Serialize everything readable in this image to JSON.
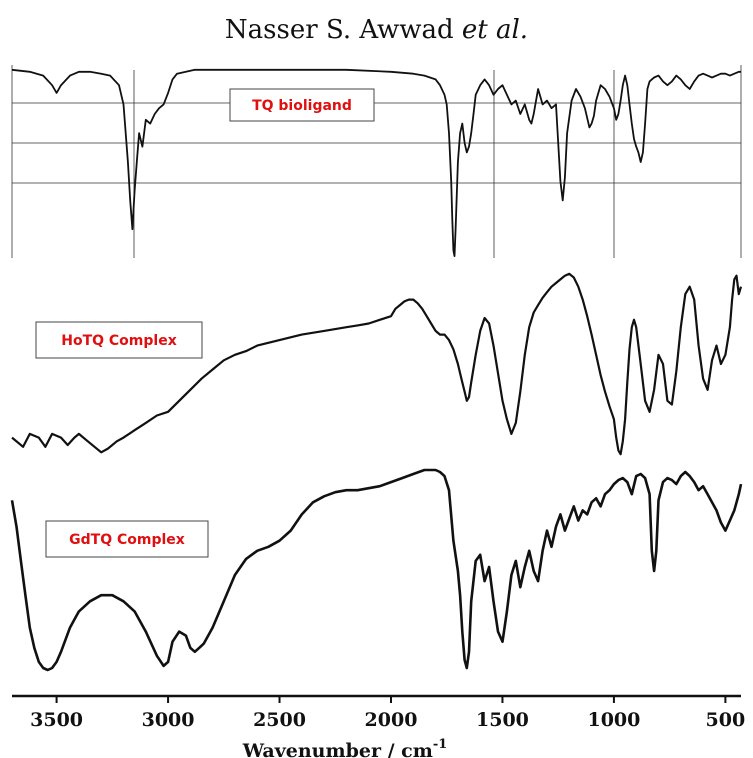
{
  "header": {
    "author": "Nasser S. Awwad",
    "suffix": "et al."
  },
  "chart_data": {
    "type": "line",
    "title": "",
    "xlabel": "Wavenumber / cm",
    "xlabel_superscript": "-1",
    "xlim": [
      3700,
      430
    ],
    "x_reversed": true,
    "x_ticks": [
      3500,
      3000,
      2500,
      2000,
      1500,
      1000,
      500
    ],
    "grid_top_panel": true,
    "series": [
      {
        "name": "TQ bioligand",
        "x": [
          3700,
          3620,
          3560,
          3520,
          3500,
          3480,
          3440,
          3400,
          3350,
          3300,
          3260,
          3220,
          3200,
          3180,
          3170,
          3160,
          3150,
          3140,
          3130,
          3115,
          3100,
          3080,
          3060,
          3040,
          3020,
          3000,
          2980,
          2960,
          2920,
          2880,
          2800,
          2600,
          2400,
          2200,
          2000,
          1900,
          1850,
          1800,
          1780,
          1760,
          1750,
          1740,
          1730,
          1725,
          1720,
          1715,
          1710,
          1700,
          1690,
          1680,
          1670,
          1660,
          1650,
          1640,
          1630,
          1620,
          1600,
          1580,
          1560,
          1540,
          1520,
          1500,
          1480,
          1460,
          1440,
          1420,
          1400,
          1380,
          1370,
          1360,
          1340,
          1320,
          1300,
          1280,
          1260,
          1250,
          1240,
          1230,
          1220,
          1210,
          1190,
          1170,
          1150,
          1130,
          1110,
          1100,
          1090,
          1080,
          1060,
          1040,
          1020,
          1000,
          990,
          980,
          970,
          960,
          950,
          940,
          930,
          920,
          910,
          900,
          890,
          880,
          870,
          860,
          850,
          840,
          830,
          820,
          800,
          780,
          760,
          740,
          720,
          700,
          680,
          660,
          640,
          620,
          600,
          580,
          560,
          540,
          520,
          500,
          480,
          460,
          440,
          430
        ],
        "values": [
          0.98,
          0.97,
          0.95,
          0.9,
          0.86,
          0.9,
          0.95,
          0.97,
          0.97,
          0.96,
          0.95,
          0.9,
          0.8,
          0.5,
          0.3,
          0.15,
          0.35,
          0.5,
          0.65,
          0.58,
          0.72,
          0.7,
          0.75,
          0.78,
          0.8,
          0.86,
          0.93,
          0.96,
          0.97,
          0.98,
          0.98,
          0.98,
          0.98,
          0.98,
          0.97,
          0.96,
          0.95,
          0.93,
          0.9,
          0.85,
          0.8,
          0.65,
          0.4,
          0.2,
          0.04,
          0.01,
          0.15,
          0.5,
          0.65,
          0.7,
          0.6,
          0.55,
          0.58,
          0.65,
          0.75,
          0.85,
          0.9,
          0.93,
          0.9,
          0.85,
          0.88,
          0.9,
          0.85,
          0.8,
          0.82,
          0.75,
          0.8,
          0.72,
          0.7,
          0.75,
          0.88,
          0.8,
          0.82,
          0.78,
          0.8,
          0.6,
          0.4,
          0.3,
          0.42,
          0.65,
          0.82,
          0.88,
          0.84,
          0.78,
          0.68,
          0.7,
          0.74,
          0.82,
          0.9,
          0.88,
          0.84,
          0.78,
          0.72,
          0.75,
          0.82,
          0.9,
          0.95,
          0.9,
          0.8,
          0.7,
          0.62,
          0.58,
          0.55,
          0.5,
          0.55,
          0.7,
          0.88,
          0.92,
          0.93,
          0.94,
          0.95,
          0.92,
          0.9,
          0.92,
          0.95,
          0.93,
          0.9,
          0.88,
          0.92,
          0.95,
          0.96,
          0.95,
          0.94,
          0.95,
          0.96,
          0.96,
          0.95,
          0.96,
          0.97,
          0.97
        ]
      },
      {
        "name": "HoTQ Complex",
        "x": [
          3700,
          3650,
          3620,
          3580,
          3550,
          3520,
          3480,
          3450,
          3420,
          3400,
          3360,
          3330,
          3300,
          3270,
          3230,
          3200,
          3150,
          3100,
          3050,
          3000,
          2950,
          2900,
          2850,
          2800,
          2750,
          2700,
          2650,
          2600,
          2500,
          2400,
          2300,
          2200,
          2150,
          2100,
          2050,
          2000,
          1980,
          1960,
          1940,
          1920,
          1900,
          1880,
          1860,
          1840,
          1820,
          1800,
          1780,
          1760,
          1740,
          1720,
          1700,
          1690,
          1680,
          1670,
          1660,
          1650,
          1640,
          1620,
          1600,
          1580,
          1560,
          1540,
          1520,
          1500,
          1480,
          1460,
          1440,
          1420,
          1400,
          1380,
          1360,
          1340,
          1320,
          1300,
          1280,
          1260,
          1240,
          1220,
          1200,
          1180,
          1160,
          1140,
          1120,
          1100,
          1080,
          1060,
          1040,
          1020,
          1000,
          990,
          980,
          970,
          960,
          950,
          940,
          930,
          920,
          910,
          900,
          880,
          860,
          840,
          820,
          800,
          780,
          760,
          740,
          720,
          700,
          680,
          660,
          640,
          620,
          600,
          580,
          560,
          540,
          520,
          500,
          480,
          470,
          460,
          450,
          440,
          430
        ],
        "values": [
          0.1,
          0.05,
          0.12,
          0.1,
          0.05,
          0.12,
          0.1,
          0.06,
          0.1,
          0.12,
          0.08,
          0.05,
          0.02,
          0.04,
          0.08,
          0.1,
          0.14,
          0.18,
          0.22,
          0.24,
          0.3,
          0.36,
          0.42,
          0.47,
          0.52,
          0.55,
          0.57,
          0.6,
          0.63,
          0.66,
          0.68,
          0.7,
          0.71,
          0.72,
          0.74,
          0.76,
          0.8,
          0.82,
          0.84,
          0.85,
          0.85,
          0.83,
          0.8,
          0.76,
          0.72,
          0.68,
          0.66,
          0.66,
          0.63,
          0.58,
          0.5,
          0.45,
          0.4,
          0.35,
          0.3,
          0.32,
          0.4,
          0.55,
          0.68,
          0.75,
          0.72,
          0.6,
          0.45,
          0.3,
          0.2,
          0.12,
          0.18,
          0.35,
          0.55,
          0.7,
          0.78,
          0.82,
          0.86,
          0.89,
          0.92,
          0.94,
          0.96,
          0.98,
          0.99,
          0.97,
          0.92,
          0.85,
          0.76,
          0.66,
          0.55,
          0.44,
          0.35,
          0.27,
          0.2,
          0.1,
          0.03,
          0.01,
          0.08,
          0.2,
          0.4,
          0.58,
          0.7,
          0.74,
          0.7,
          0.5,
          0.3,
          0.24,
          0.36,
          0.55,
          0.5,
          0.3,
          0.28,
          0.46,
          0.7,
          0.88,
          0.92,
          0.85,
          0.6,
          0.42,
          0.36,
          0.52,
          0.6,
          0.5,
          0.55,
          0.7,
          0.85,
          0.96,
          0.98,
          0.88,
          0.92
        ]
      },
      {
        "name": "GdTQ Complex",
        "x": [
          3700,
          3680,
          3660,
          3640,
          3620,
          3600,
          3580,
          3560,
          3540,
          3520,
          3500,
          3480,
          3460,
          3440,
          3420,
          3400,
          3350,
          3300,
          3250,
          3200,
          3150,
          3100,
          3050,
          3020,
          3000,
          2980,
          2950,
          2920,
          2900,
          2880,
          2860,
          2840,
          2820,
          2800,
          2750,
          2700,
          2650,
          2600,
          2550,
          2500,
          2450,
          2400,
          2350,
          2300,
          2250,
          2200,
          2150,
          2100,
          2050,
          2000,
          1950,
          1900,
          1850,
          1800,
          1780,
          1760,
          1740,
          1720,
          1700,
          1690,
          1680,
          1670,
          1660,
          1650,
          1640,
          1620,
          1600,
          1580,
          1560,
          1540,
          1520,
          1500,
          1480,
          1460,
          1440,
          1420,
          1400,
          1380,
          1360,
          1340,
          1320,
          1300,
          1280,
          1260,
          1240,
          1220,
          1200,
          1180,
          1160,
          1140,
          1120,
          1100,
          1080,
          1060,
          1040,
          1020,
          1000,
          980,
          960,
          940,
          920,
          900,
          880,
          860,
          840,
          830,
          820,
          810,
          800,
          780,
          760,
          740,
          720,
          700,
          680,
          660,
          640,
          620,
          600,
          580,
          560,
          540,
          520,
          500,
          480,
          460,
          440,
          430
        ],
        "values": [
          0.85,
          0.72,
          0.55,
          0.38,
          0.22,
          0.12,
          0.05,
          0.02,
          0.01,
          0.02,
          0.05,
          0.1,
          0.16,
          0.22,
          0.26,
          0.3,
          0.35,
          0.38,
          0.38,
          0.35,
          0.3,
          0.2,
          0.08,
          0.03,
          0.05,
          0.15,
          0.2,
          0.18,
          0.12,
          0.1,
          0.12,
          0.14,
          0.18,
          0.22,
          0.35,
          0.48,
          0.56,
          0.6,
          0.62,
          0.65,
          0.7,
          0.78,
          0.84,
          0.87,
          0.89,
          0.9,
          0.9,
          0.91,
          0.92,
          0.94,
          0.96,
          0.98,
          1.0,
          1.0,
          0.99,
          0.97,
          0.9,
          0.65,
          0.5,
          0.38,
          0.2,
          0.06,
          0.02,
          0.1,
          0.35,
          0.55,
          0.58,
          0.45,
          0.52,
          0.35,
          0.2,
          0.15,
          0.3,
          0.48,
          0.55,
          0.42,
          0.52,
          0.6,
          0.5,
          0.45,
          0.6,
          0.7,
          0.62,
          0.72,
          0.78,
          0.7,
          0.76,
          0.82,
          0.75,
          0.8,
          0.78,
          0.84,
          0.86,
          0.82,
          0.88,
          0.9,
          0.93,
          0.95,
          0.96,
          0.94,
          0.88,
          0.97,
          0.98,
          0.96,
          0.88,
          0.6,
          0.5,
          0.6,
          0.85,
          0.94,
          0.96,
          0.95,
          0.93,
          0.97,
          0.99,
          0.97,
          0.94,
          0.9,
          0.92,
          0.88,
          0.84,
          0.8,
          0.74,
          0.7,
          0.75,
          0.8,
          0.88,
          0.93
        ]
      }
    ]
  }
}
